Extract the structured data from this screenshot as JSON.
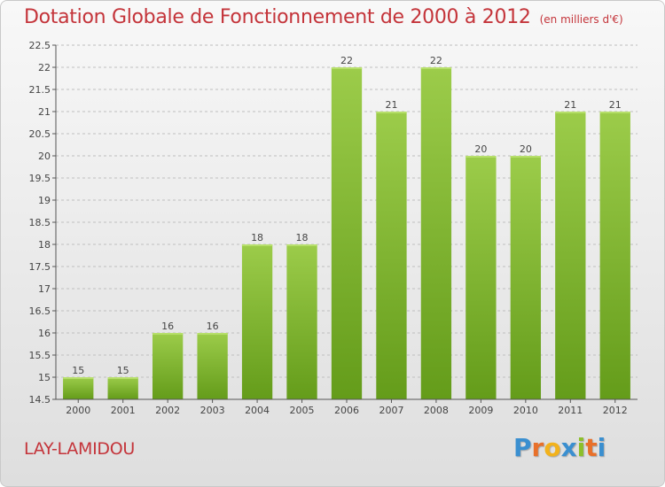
{
  "header": {
    "title": "Dotation Globale de Fonctionnement de 2000 à 2012",
    "subtitle": "(en milliers d'€)"
  },
  "footer": {
    "commune": "LAY-LAMIDOU",
    "logo_text": "Proxiti"
  },
  "colors": {
    "title": "#c4343a",
    "bar_light": "#9ccc4a",
    "bar_dark": "#649c1a"
  },
  "chart_data": {
    "type": "bar",
    "title": "Dotation Globale de Fonctionnement de 2000 à 2012",
    "categories": [
      "2000",
      "2001",
      "2002",
      "2003",
      "2004",
      "2005",
      "2006",
      "2007",
      "2008",
      "2009",
      "2010",
      "2011",
      "2012"
    ],
    "values": [
      15,
      15,
      16,
      16,
      18,
      18,
      22,
      21,
      22,
      20,
      20,
      21,
      21
    ],
    "ylim": [
      14.5,
      22.5
    ],
    "yticks": [
      "14.5",
      "15",
      "15.5",
      "16",
      "16.5",
      "17",
      "17.5",
      "18",
      "18.5",
      "19",
      "19.5",
      "20",
      "20.5",
      "21",
      "21.5",
      "22",
      "22.5"
    ],
    "grid": true
  }
}
